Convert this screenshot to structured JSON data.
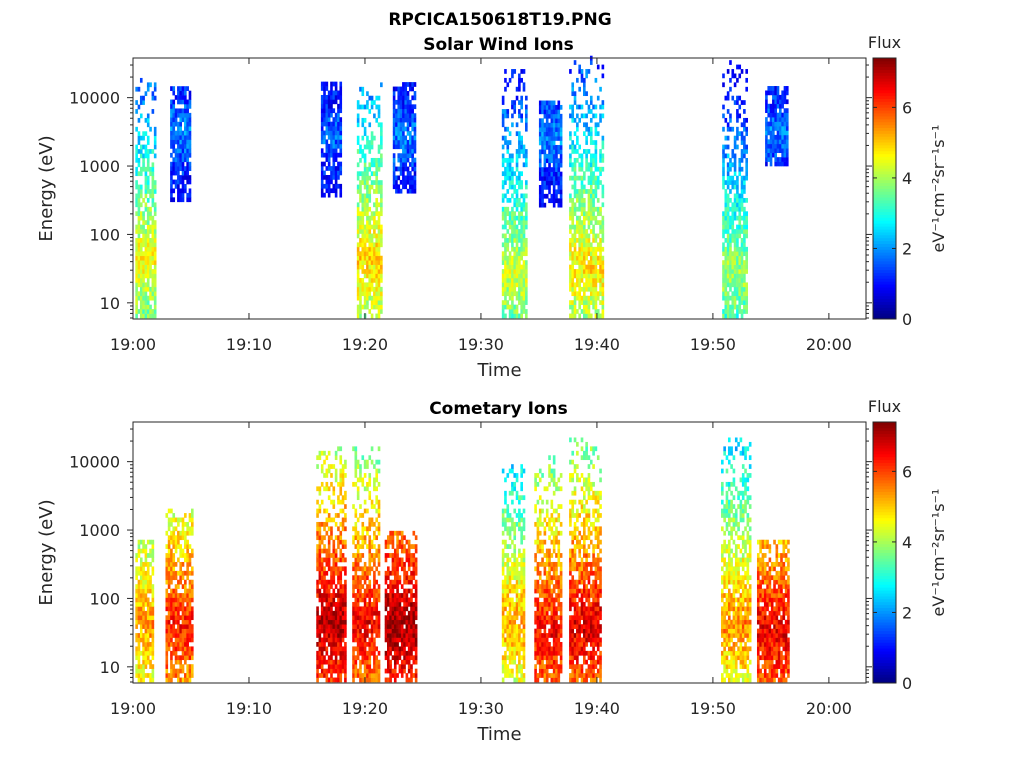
{
  "figure_title": "RPCICA150618T19.PNG",
  "colors": {
    "colormap": [
      "#00007f",
      "#0000ff",
      "#007fff",
      "#00ffff",
      "#7fff7f",
      "#ffff00",
      "#ff7f00",
      "#ff0000",
      "#7f0000"
    ],
    "axis": "#262626",
    "background": "#ffffff"
  },
  "chart_data": [
    {
      "type": "heatmap",
      "title": "Solar Wind Ions",
      "xlabel": "Time",
      "ylabel": "Energy (eV)",
      "x_ticks": [
        "19:00",
        "19:10",
        "19:20",
        "19:30",
        "19:40",
        "19:50",
        "20:00"
      ],
      "xlim_minutes": [
        0,
        63.2
      ],
      "yscale": "log",
      "y_ticks": [
        "10",
        "100",
        "1000",
        "10000"
      ],
      "ylim": [
        5.8,
        38000
      ],
      "colorbar": {
        "label": "Flux",
        "units": "eV⁻¹cm⁻²sr⁻¹s⁻¹",
        "ticks": [
          "0",
          "2",
          "4",
          "6"
        ],
        "range": [
          0,
          7.4
        ]
      },
      "bursts": [
        {
          "t_start": 0.2,
          "t_end": 1.8,
          "e_min": 6,
          "e_max": 18000,
          "peak_energy": 40,
          "peak_flux": 4.6
        },
        {
          "t_start": 3.2,
          "t_end": 5.0,
          "e_min": 300,
          "e_max": 13000,
          "peak_energy": 3000,
          "peak_flux": 1.9
        },
        {
          "t_start": 16.2,
          "t_end": 17.8,
          "e_min": 350,
          "e_max": 16000,
          "peak_energy": 2500,
          "peak_flux": 1.7
        },
        {
          "t_start": 19.3,
          "t_end": 21.3,
          "e_min": 6,
          "e_max": 15000,
          "peak_energy": 40,
          "peak_flux": 4.9
        },
        {
          "t_start": 22.4,
          "t_end": 24.2,
          "e_min": 400,
          "e_max": 15000,
          "peak_energy": 2500,
          "peak_flux": 1.8
        },
        {
          "t_start": 31.8,
          "t_end": 33.9,
          "e_min": 6,
          "e_max": 25000,
          "peak_energy": 25,
          "peak_flux": 4.3
        },
        {
          "t_start": 35.0,
          "t_end": 37.0,
          "e_min": 250,
          "e_max": 9000,
          "peak_energy": 2500,
          "peak_flux": 1.9
        },
        {
          "t_start": 37.6,
          "t_end": 40.5,
          "e_min": 6,
          "e_max": 36000,
          "peak_energy": 30,
          "peak_flux": 4.8
        },
        {
          "t_start": 50.8,
          "t_end": 53.0,
          "e_min": 6,
          "e_max": 35000,
          "peak_energy": 25,
          "peak_flux": 4.0
        },
        {
          "t_start": 54.5,
          "t_end": 56.4,
          "e_min": 1000,
          "e_max": 13000,
          "peak_energy": 3000,
          "peak_flux": 1.8
        }
      ]
    },
    {
      "type": "heatmap",
      "title": "Cometary Ions",
      "xlabel": "Time",
      "ylabel": "Energy (eV)",
      "x_ticks": [
        "19:00",
        "19:10",
        "19:20",
        "19:30",
        "19:40",
        "19:50",
        "20:00"
      ],
      "xlim_minutes": [
        0,
        63.2
      ],
      "yscale": "log",
      "y_ticks": [
        "10",
        "100",
        "1000",
        "10000"
      ],
      "ylim": [
        5.8,
        38000
      ],
      "colorbar": {
        "label": "Flux",
        "units": "eV⁻¹cm⁻²sr⁻¹s⁻¹",
        "ticks": [
          "0",
          "2",
          "4",
          "6"
        ],
        "range": [
          0,
          7.4
        ]
      },
      "bursts": [
        {
          "t_start": 0.2,
          "t_end": 1.6,
          "e_min": 6,
          "e_max": 700,
          "peak_energy": 40,
          "peak_flux": 5.4
        },
        {
          "t_start": 2.8,
          "t_end": 5.2,
          "e_min": 6,
          "e_max": 2000,
          "peak_energy": 35,
          "peak_flux": 6.3
        },
        {
          "t_start": 15.8,
          "t_end": 18.2,
          "e_min": 6,
          "e_max": 15000,
          "peak_energy": 40,
          "peak_flux": 7.0
        },
        {
          "t_start": 18.9,
          "t_end": 21.1,
          "e_min": 6,
          "e_max": 16000,
          "peak_energy": 40,
          "peak_flux": 6.6
        },
        {
          "t_start": 21.7,
          "t_end": 24.3,
          "e_min": 6,
          "e_max": 900,
          "peak_energy": 35,
          "peak_flux": 7.2
        },
        {
          "t_start": 31.8,
          "t_end": 33.8,
          "e_min": 6,
          "e_max": 8000,
          "peak_energy": 40,
          "peak_flux": 5.3
        },
        {
          "t_start": 34.6,
          "t_end": 37.0,
          "e_min": 6,
          "e_max": 12000,
          "peak_energy": 30,
          "peak_flux": 6.5
        },
        {
          "t_start": 37.6,
          "t_end": 40.3,
          "e_min": 6,
          "e_max": 21000,
          "peak_energy": 35,
          "peak_flux": 6.7
        },
        {
          "t_start": 50.7,
          "t_end": 53.2,
          "e_min": 6,
          "e_max": 20000,
          "peak_energy": 40,
          "peak_flux": 5.5
        },
        {
          "t_start": 53.8,
          "t_end": 56.5,
          "e_min": 6,
          "e_max": 700,
          "peak_energy": 30,
          "peak_flux": 6.6
        }
      ]
    }
  ]
}
